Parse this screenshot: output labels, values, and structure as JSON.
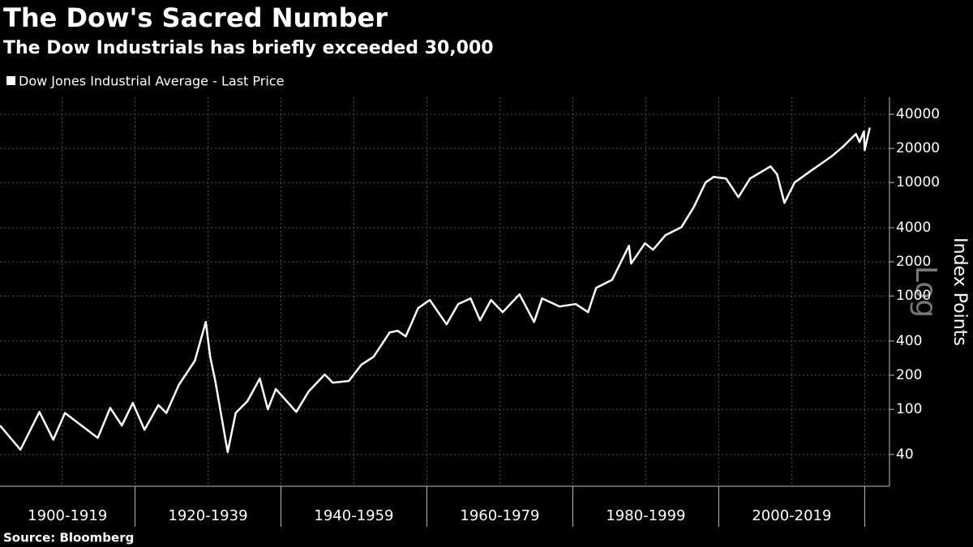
{
  "chart_data": {
    "type": "line",
    "title": "The Dow's Sacred Number",
    "subtitle": "The Dow Industrials has briefly exceeded 30,000",
    "source": "Source: Bloomberg",
    "y_label": "Index Points",
    "y_scale_label": "Log",
    "log_y": true,
    "grid": true,
    "legend": "top-left",
    "x": [
      1901.5,
      1904.3,
      1906.9,
      1908.8,
      1910.4,
      1914.9,
      1916.6,
      1918.2,
      1919.7,
      1921.3,
      1923.2,
      1924.3,
      1926.0,
      1928.2,
      1929.7,
      1930.3,
      1931.0,
      1932.7,
      1933.8,
      1935.4,
      1937.1,
      1938.2,
      1939.3,
      1942.1,
      1943.8,
      1946.0,
      1947.1,
      1949.3,
      1951.0,
      1952.7,
      1954.9,
      1956.0,
      1957.1,
      1958.8,
      1960.4,
      1962.7,
      1964.3,
      1966.0,
      1967.3,
      1968.8,
      1970.4,
      1972.7,
      1974.7,
      1975.8,
      1978.2,
      1980.4,
      1982.1,
      1983.2,
      1985.4,
      1987.7,
      1988.0,
      1989.9,
      1991.0,
      1992.7,
      1994.9,
      1996.6,
      1998.2,
      1999.3,
      2001.0,
      2002.7,
      2004.3,
      2007.1,
      2008.0,
      2009.0,
      2010.4,
      2012.7,
      2015.4,
      2017.1,
      2018.8,
      2019.3,
      2019.9,
      2020.0,
      2020.7
    ],
    "series": [
      {
        "name": "Dow Jones Industrial Average - Last Price",
        "color": "#ffffff",
        "values": [
          72,
          44,
          95,
          54,
          93,
          56,
          103,
          72,
          114,
          66,
          109,
          93,
          164,
          268,
          590,
          291,
          178,
          42,
          93,
          118,
          187,
          100,
          151,
          95,
          144,
          203,
          172,
          178,
          247,
          291,
          477,
          493,
          440,
          781,
          921,
          562,
          848,
          952,
          610,
          921,
          720,
          1033,
          590,
          952,
          808,
          848,
          720,
          1178,
          1389,
          2772,
          1931,
          2913,
          2555,
          3433,
          4049,
          6101,
          10000,
          11210,
          10844,
          7428,
          10844,
          13895,
          11800,
          6611,
          10000,
          12780,
          16900,
          20930,
          26830,
          22700,
          28200,
          19300,
          30500
        ]
      }
    ],
    "xlim": [
      1901.5,
      2023.4
    ],
    "xticks": [
      1910,
      1920,
      1930,
      1940,
      1950,
      1960,
      1970,
      1980,
      1990,
      2000,
      2010,
      2020
    ],
    "x_bands": [
      {
        "label": "1900-1919",
        "start": 1900,
        "end": 1920
      },
      {
        "label": "1920-1939",
        "start": 1920,
        "end": 1940
      },
      {
        "label": "1940-1959",
        "start": 1940,
        "end": 1960
      },
      {
        "label": "1960-1979",
        "start": 1960,
        "end": 1980
      },
      {
        "label": "1980-1999",
        "start": 1980,
        "end": 2000
      },
      {
        "label": "2000-2019",
        "start": 2000,
        "end": 2020
      }
    ],
    "ylim": [
      21,
      56500
    ],
    "yticks": [
      40,
      100,
      200,
      400,
      1000,
      2000,
      4000,
      10000,
      20000,
      40000
    ]
  }
}
